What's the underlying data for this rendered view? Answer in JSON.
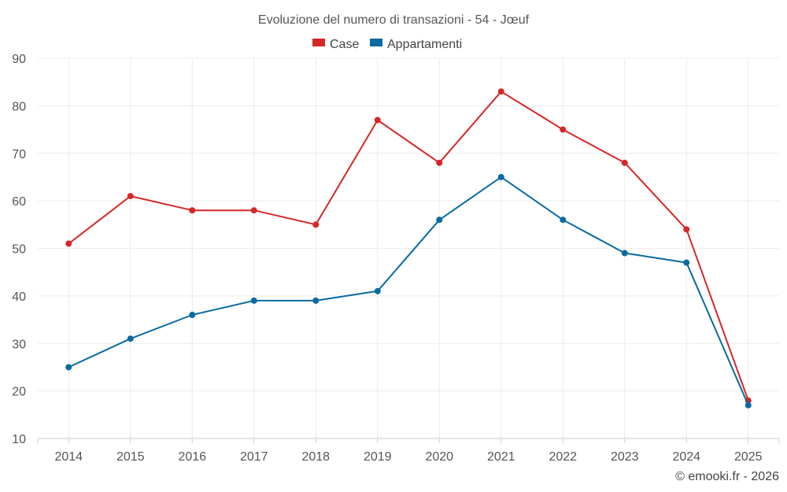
{
  "chart_data": {
    "type": "line",
    "title": "Evoluzione del numero di transazioni - 54 - Jœuf",
    "categories": [
      "2014",
      "2015",
      "2016",
      "2017",
      "2018",
      "2019",
      "2020",
      "2021",
      "2022",
      "2023",
      "2024",
      "2025"
    ],
    "series": [
      {
        "name": "Case",
        "color": "#d62728",
        "values": [
          51,
          61,
          58,
          58,
          55,
          77,
          68,
          83,
          75,
          68,
          54,
          18
        ]
      },
      {
        "name": "Appartamenti",
        "color": "#0a6aa1",
        "values": [
          25,
          31,
          36,
          39,
          39,
          41,
          56,
          65,
          56,
          49,
          47,
          17
        ]
      }
    ],
    "ylim": [
      10,
      90
    ],
    "yticks": [
      "10",
      "20",
      "30",
      "40",
      "50",
      "60",
      "70",
      "80",
      "90"
    ],
    "xlabel": "",
    "ylabel": "",
    "grid": true,
    "legend": "top-center"
  },
  "credit": "© emooki.fr - 2026"
}
